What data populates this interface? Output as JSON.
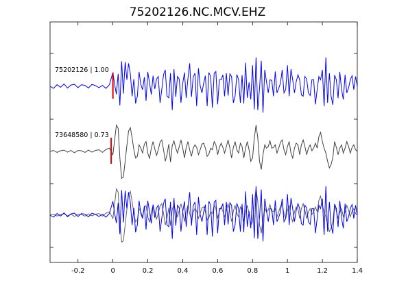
{
  "chart_data": {
    "type": "line",
    "title": "75202126.NC.MCV.EHZ",
    "xlabel": "",
    "ylabel": "",
    "xlim": [
      -0.36,
      1.4
    ],
    "xticks": [
      -0.2,
      0,
      0.2,
      0.4,
      0.6,
      0.8,
      1,
      1.2,
      1.4
    ],
    "xtick_labels": [
      "-0.2",
      "0",
      "0.2",
      "0.4",
      "0.6",
      "0.8",
      "1",
      "1.2",
      "1.4"
    ],
    "grid": false,
    "colors": {
      "primary": "#0000ff",
      "secondary": "#404040",
      "pick": "#dd0000"
    },
    "series": [
      {
        "label": "75202126 | 1.00",
        "color": "#0000ff",
        "pick_time": 0.0,
        "x": [
          -0.36,
          -0.34,
          -0.32,
          -0.3,
          -0.28,
          -0.26,
          -0.24,
          -0.22,
          -0.2,
          -0.18,
          -0.16,
          -0.14,
          -0.12,
          -0.1,
          -0.08,
          -0.06,
          -0.04,
          -0.02,
          0.0,
          0.01,
          0.02,
          0.03,
          0.04,
          0.05,
          0.06,
          0.07,
          0.08,
          0.09,
          0.1,
          0.11,
          0.12,
          0.13,
          0.14,
          0.15,
          0.16,
          0.17,
          0.18,
          0.19,
          0.2,
          0.21,
          0.22,
          0.23,
          0.24,
          0.25,
          0.26,
          0.27,
          0.28,
          0.29,
          0.3,
          0.31,
          0.32,
          0.33,
          0.34,
          0.35,
          0.36,
          0.37,
          0.38,
          0.39,
          0.4,
          0.41,
          0.42,
          0.43,
          0.44,
          0.45,
          0.46,
          0.47,
          0.48,
          0.49,
          0.5,
          0.51,
          0.52,
          0.53,
          0.54,
          0.55,
          0.56,
          0.57,
          0.58,
          0.59,
          0.6,
          0.61,
          0.62,
          0.63,
          0.64,
          0.65,
          0.66,
          0.67,
          0.68,
          0.69,
          0.7,
          0.71,
          0.72,
          0.73,
          0.74,
          0.75,
          0.76,
          0.77,
          0.78,
          0.79,
          0.8,
          0.81,
          0.82,
          0.83,
          0.84,
          0.85,
          0.86,
          0.87,
          0.88,
          0.89,
          0.9,
          0.91,
          0.92,
          0.93,
          0.94,
          0.95,
          0.96,
          0.97,
          0.98,
          0.99,
          1.0,
          1.01,
          1.02,
          1.03,
          1.04,
          1.05,
          1.06,
          1.07,
          1.08,
          1.09,
          1.1,
          1.11,
          1.12,
          1.13,
          1.14,
          1.15,
          1.16,
          1.17,
          1.18,
          1.19,
          1.2,
          1.21,
          1.22,
          1.23,
          1.24,
          1.25,
          1.26,
          1.27,
          1.28,
          1.29,
          1.3,
          1.31,
          1.32,
          1.33,
          1.34,
          1.35,
          1.36,
          1.37,
          1.38,
          1.39,
          1.4
        ],
        "y": [
          0.0,
          -0.06,
          0.05,
          -0.03,
          0.07,
          -0.05,
          0.04,
          0.06,
          -0.04,
          0.05,
          0.03,
          -0.05,
          0.06,
          0.02,
          -0.04,
          0.03,
          -0.06,
          0.05,
          0.42,
          0.05,
          -0.24,
          0.38,
          -0.58,
          0.76,
          -0.22,
          0.74,
          0.2,
          0.7,
          0.38,
          -0.3,
          0.22,
          -0.52,
          -0.3,
          0.44,
          0.05,
          -0.1,
          0.28,
          -0.44,
          0.44,
          0.1,
          -0.25,
          0.32,
          -0.08,
          0.22,
          0.3,
          -0.5,
          -0.1,
          0.36,
          0.5,
          -0.3,
          -0.35,
          0.4,
          -0.72,
          0.52,
          -0.32,
          0.3,
          0.22,
          -0.5,
          0.1,
          0.42,
          -0.35,
          0.25,
          0.7,
          -0.32,
          0.28,
          0.4,
          -0.6,
          0.55,
          0.02,
          -0.2,
          0.1,
          0.32,
          -0.6,
          0.42,
          0.3,
          -0.65,
          0.4,
          0.45,
          -0.55,
          0.2,
          0.2,
          0.35,
          -0.3,
          0.4,
          -0.28,
          0.38,
          0.3,
          -0.5,
          -0.3,
          0.36,
          0.2,
          -0.5,
          0.34,
          -0.52,
          0.72,
          -0.35,
          0.12,
          -0.4,
          0.64,
          -0.7,
          0.88,
          -0.72,
          -0.05,
          0.78,
          -0.8,
          0.5,
          0.14,
          -0.2,
          0.2,
          0.18,
          -0.3,
          0.45,
          -0.2,
          -0.06,
          0.1,
          0.5,
          -0.2,
          -0.1,
          0.64,
          -0.3,
          0.52,
          0.2,
          -0.2,
          0.14,
          0.35,
          0.2,
          -0.26,
          -0.3,
          0.3,
          0.22,
          -0.2,
          -0.28,
          0.2,
          0.2,
          -0.55,
          -0.1,
          0.3,
          0.2,
          0.5,
          -0.6,
          0.88,
          -0.5,
          0.4,
          -0.3,
          -0.56,
          0.34,
          0.2,
          -0.36,
          0.44,
          -0.1,
          -0.4,
          0.35,
          -0.2,
          -0.05,
          0.2,
          0.32,
          -0.1,
          0.3,
          0.0
        ]
      },
      {
        "label": "73648580 | 0.73",
        "color": "#404040",
        "pick_time": -0.01,
        "x": [
          -0.36,
          -0.34,
          -0.32,
          -0.3,
          -0.28,
          -0.26,
          -0.24,
          -0.22,
          -0.2,
          -0.18,
          -0.16,
          -0.14,
          -0.12,
          -0.1,
          -0.08,
          -0.06,
          -0.04,
          -0.02,
          0.0,
          0.01,
          0.02,
          0.03,
          0.04,
          0.05,
          0.06,
          0.07,
          0.08,
          0.09,
          0.1,
          0.11,
          0.12,
          0.13,
          0.14,
          0.15,
          0.16,
          0.17,
          0.18,
          0.19,
          0.2,
          0.21,
          0.22,
          0.23,
          0.24,
          0.25,
          0.26,
          0.27,
          0.28,
          0.29,
          0.3,
          0.31,
          0.32,
          0.33,
          0.34,
          0.35,
          0.36,
          0.37,
          0.38,
          0.39,
          0.4,
          0.41,
          0.42,
          0.43,
          0.44,
          0.45,
          0.46,
          0.47,
          0.48,
          0.49,
          0.5,
          0.51,
          0.52,
          0.53,
          0.54,
          0.55,
          0.56,
          0.57,
          0.58,
          0.59,
          0.6,
          0.61,
          0.62,
          0.63,
          0.64,
          0.65,
          0.66,
          0.67,
          0.68,
          0.69,
          0.7,
          0.71,
          0.72,
          0.73,
          0.74,
          0.75,
          0.76,
          0.77,
          0.78,
          0.79,
          0.8,
          0.81,
          0.82,
          0.83,
          0.84,
          0.85,
          0.86,
          0.87,
          0.88,
          0.89,
          0.9,
          0.91,
          0.92,
          0.93,
          0.94,
          0.95,
          0.96,
          0.97,
          0.98,
          0.99,
          1.0,
          1.01,
          1.02,
          1.03,
          1.04,
          1.05,
          1.06,
          1.07,
          1.08,
          1.09,
          1.1,
          1.11,
          1.12,
          1.13,
          1.14,
          1.15,
          1.16,
          1.17,
          1.18,
          1.19,
          1.2,
          1.21,
          1.22,
          1.23,
          1.24,
          1.25,
          1.26,
          1.27,
          1.28,
          1.29,
          1.3,
          1.31,
          1.32,
          1.33,
          1.34,
          1.35,
          1.36,
          1.37,
          1.38,
          1.39,
          1.4
        ],
        "y": [
          0.0,
          0.03,
          -0.03,
          0.02,
          0.04,
          -0.02,
          0.03,
          -0.04,
          0.03,
          0.02,
          -0.03,
          0.04,
          -0.02,
          0.03,
          0.05,
          -0.03,
          0.06,
          0.1,
          -0.1,
          0.35,
          0.8,
          0.7,
          -0.2,
          -0.82,
          -0.78,
          -0.3,
          0.18,
          0.62,
          0.72,
          0.42,
          0.05,
          -0.2,
          -0.15,
          0.2,
          0.1,
          -0.05,
          0.22,
          0.3,
          -0.05,
          -0.22,
          0.1,
          0.3,
          0.08,
          -0.12,
          0.05,
          0.28,
          0.35,
          0.05,
          -0.3,
          -0.1,
          0.22,
          -0.32,
          0.18,
          0.32,
          0.1,
          -0.05,
          0.15,
          0.35,
          0.1,
          -0.2,
          0.12,
          0.3,
          0.05,
          -0.15,
          0.1,
          0.2,
          0.12,
          -0.1,
          0.05,
          0.22,
          0.25,
          0.1,
          -0.15,
          -0.08,
          0.1,
          0.05,
          0.3,
          0.2,
          -0.1,
          0.12,
          0.25,
          0.12,
          -0.05,
          0.15,
          0.35,
          0.1,
          -0.2,
          0.12,
          0.3,
          0.05,
          -0.05,
          0.25,
          0.15,
          -0.2,
          0.1,
          0.3,
          0.05,
          -0.3,
          -0.2,
          0.4,
          0.8,
          0.42,
          -0.3,
          -0.55,
          -0.1,
          0.2,
          0.1,
          0.15,
          0.32,
          0.1,
          0.12,
          0.2,
          -0.05,
          0.1,
          0.28,
          0.35,
          0.05,
          -0.1,
          0.15,
          0.3,
          -0.05,
          -0.2,
          0.1,
          0.25,
          0.2,
          -0.1,
          0.2,
          0.35,
          0.15,
          -0.1,
          0.1,
          0.2,
          0.02,
          0.1,
          0.25,
          0.1,
          0.45,
          0.58,
          0.3,
          0.1,
          -0.05,
          -0.3,
          -0.5,
          -0.4,
          -0.18,
          0.3,
          0.12,
          -0.1,
          0.1,
          0.2,
          -0.05,
          0.1,
          0.3,
          0.15,
          -0.05,
          0.12,
          0.2,
          0.05,
          0.0
        ]
      }
    ],
    "overlay": {
      "description_order": [
        "series_1 (scaled 0.73)",
        "series_0"
      ]
    }
  }
}
